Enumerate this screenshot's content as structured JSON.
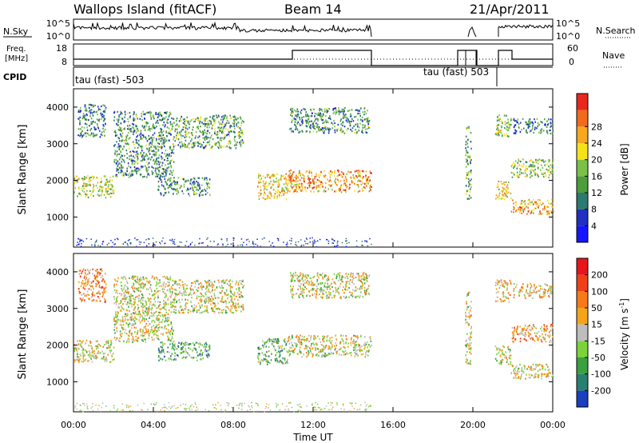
{
  "header": {
    "station": "Wallops Island (fitACF)",
    "beam": "Beam 14",
    "date": "21/Apr/2011"
  },
  "top_panels": {
    "nsky_label": "N.Sky",
    "nsky_ticks": [
      "10^5",
      "10^0"
    ],
    "nsearch_label": "N.Search",
    "nsearch_ticks": [
      "10^5",
      "10^0"
    ],
    "freq_label_line1": "Freq.",
    "freq_label_line2": "[MHz]",
    "freq_ticks": [
      "18",
      "8"
    ],
    "nave_label": "Nave",
    "nave_ticks": [
      "60",
      "0"
    ],
    "cpid_label": "CPID",
    "cpid_events": [
      {
        "label": "tau (fast) -503",
        "time_h": 0.0
      },
      {
        "label": "tau (fast) 503",
        "time_h": 20.2
      }
    ]
  },
  "chart_data": [
    {
      "type": "heatmap",
      "name": "Power",
      "xlabel": "",
      "ylabel": "Slant Range [km]",
      "xlim": [
        0,
        24
      ],
      "ylim": [
        180,
        4500
      ],
      "yticks": [
        "1000",
        "2000",
        "3000",
        "4000"
      ],
      "colorbar": {
        "label": "Power [dB]",
        "ticks": [
          "4",
          "8",
          "12",
          "16",
          "20",
          "24",
          "28"
        ],
        "colors": [
          "#1515ff",
          "#2030c0",
          "#2c7a70",
          "#4d9e3a",
          "#7cc04a",
          "#f5e21a",
          "#f7a81e",
          "#f26a1c",
          "#e8281c"
        ]
      },
      "echo_regions": [
        {
          "t0": 0.0,
          "t1": 2.0,
          "r0": 1550,
          "r1": 2150,
          "level": 0.55
        },
        {
          "t0": 2.0,
          "t1": 5.0,
          "r0": 2100,
          "r1": 3900,
          "level": 0.35
        },
        {
          "t0": 5.0,
          "t1": 8.5,
          "r0": 2900,
          "r1": 3800,
          "level": 0.4
        },
        {
          "t0": 4.2,
          "t1": 6.8,
          "r0": 1600,
          "r1": 2100,
          "level": 0.35
        },
        {
          "t0": 9.2,
          "t1": 10.7,
          "r0": 1500,
          "r1": 2200,
          "level": 0.65
        },
        {
          "t0": 10.7,
          "t1": 14.9,
          "r0": 1700,
          "r1": 2300,
          "level": 0.75
        },
        {
          "t0": 0.2,
          "t1": 1.6,
          "r0": 3200,
          "r1": 4100,
          "level": 0.3
        },
        {
          "t0": 10.8,
          "t1": 14.8,
          "r0": 3300,
          "r1": 4000,
          "level": 0.35
        },
        {
          "t0": 21.1,
          "t1": 21.9,
          "r0": 3200,
          "r1": 3800,
          "level": 0.5
        },
        {
          "t0": 21.1,
          "t1": 21.9,
          "r0": 1500,
          "r1": 2000,
          "level": 0.6
        },
        {
          "t0": 21.9,
          "t1": 24.0,
          "r0": 1100,
          "r1": 1500,
          "level": 0.7
        },
        {
          "t0": 21.9,
          "t1": 24.0,
          "r0": 2100,
          "r1": 2600,
          "level": 0.5
        },
        {
          "t0": 22.0,
          "t1": 24.0,
          "r0": 3300,
          "r1": 3700,
          "level": 0.3
        },
        {
          "t0": 19.6,
          "t1": 19.9,
          "r0": 1500,
          "r1": 3500,
          "level": 0.4
        }
      ]
    },
    {
      "type": "heatmap",
      "name": "Velocity",
      "xlabel": "Time UT",
      "ylabel": "Slant Range [km]",
      "xlim": [
        0,
        24
      ],
      "ylim": [
        180,
        4500
      ],
      "xticks": [
        "00:00",
        "04:00",
        "08:00",
        "12:00",
        "16:00",
        "20:00",
        "00:00"
      ],
      "yticks": [
        "1000",
        "2000",
        "3000",
        "4000"
      ],
      "colorbar": {
        "label": "Velocity [m s",
        "label_superscript": "-1",
        "label_close": "]",
        "ticks": [
          "200",
          "100",
          "50",
          "15",
          "-15",
          "-50",
          "-100",
          "-200"
        ],
        "colors": [
          "#1a3fbf",
          "#2a8070",
          "#3aa040",
          "#7bd23a",
          "#bdbdbd",
          "#f5a41a",
          "#f77a18",
          "#f0401a",
          "#e8161a"
        ]
      },
      "echo_regions": [
        {
          "t0": 0.0,
          "t1": 2.0,
          "r0": 1550,
          "r1": 2150,
          "level": 0.5
        },
        {
          "t0": 2.0,
          "t1": 5.0,
          "r0": 2100,
          "r1": 3900,
          "level": 0.5
        },
        {
          "t0": 5.0,
          "t1": 8.5,
          "r0": 2900,
          "r1": 3800,
          "level": 0.5
        },
        {
          "t0": 4.2,
          "t1": 6.8,
          "r0": 1600,
          "r1": 2100,
          "level": 0.3
        },
        {
          "t0": 9.2,
          "t1": 10.7,
          "r0": 1500,
          "r1": 2200,
          "level": 0.35
        },
        {
          "t0": 10.7,
          "t1": 14.9,
          "r0": 1700,
          "r1": 2300,
          "level": 0.5
        },
        {
          "t0": 0.2,
          "t1": 1.6,
          "r0": 3200,
          "r1": 4100,
          "level": 0.7
        },
        {
          "t0": 10.8,
          "t1": 14.8,
          "r0": 3300,
          "r1": 4000,
          "level": 0.5
        },
        {
          "t0": 21.1,
          "t1": 21.9,
          "r0": 3200,
          "r1": 3800,
          "level": 0.55
        },
        {
          "t0": 21.1,
          "t1": 21.9,
          "r0": 1500,
          "r1": 2000,
          "level": 0.5
        },
        {
          "t0": 21.9,
          "t1": 24.0,
          "r0": 1100,
          "r1": 1500,
          "level": 0.55
        },
        {
          "t0": 21.9,
          "t1": 24.0,
          "r0": 2100,
          "r1": 2600,
          "level": 0.65
        },
        {
          "t0": 22.0,
          "t1": 24.0,
          "r0": 3300,
          "r1": 3700,
          "level": 0.6
        },
        {
          "t0": 19.6,
          "t1": 19.9,
          "r0": 1500,
          "r1": 3500,
          "level": 0.5
        }
      ]
    }
  ]
}
